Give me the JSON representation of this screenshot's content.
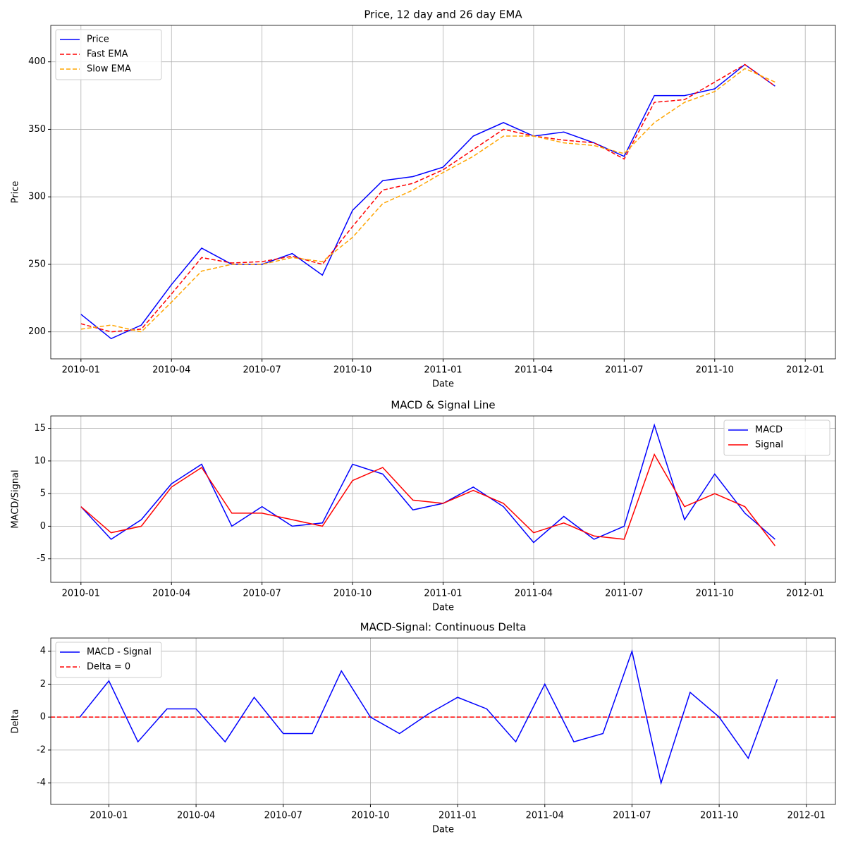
{
  "chart_data": [
    {
      "type": "line",
      "title": "Price, 12 day and 26 day EMA",
      "xlabel": "Date",
      "ylabel": "Price",
      "x": [
        "2010-01",
        "2010-02",
        "2010-03",
        "2010-04",
        "2010-05",
        "2010-06",
        "2010-07",
        "2010-08",
        "2010-09",
        "2010-10",
        "2010-11",
        "2010-12",
        "2011-01",
        "2011-02",
        "2011-03",
        "2011-04",
        "2011-05",
        "2011-06",
        "2011-07",
        "2011-08",
        "2011-09",
        "2011-10",
        "2011-11",
        "2011-12"
      ],
      "series": [
        {
          "name": "Price",
          "color": "#0000ff",
          "dash": false,
          "values": [
            213,
            195,
            205,
            235,
            262,
            250,
            250,
            258,
            242,
            290,
            312,
            315,
            322,
            345,
            355,
            345,
            348,
            340,
            330,
            375,
            375,
            380,
            398,
            382
          ]
        },
        {
          "name": "Fast EMA",
          "color": "#ff0000",
          "dash": true,
          "values": [
            206,
            200,
            202,
            228,
            255,
            251,
            252,
            256,
            250,
            278,
            305,
            310,
            320,
            335,
            350,
            345,
            342,
            340,
            328,
            370,
            372,
            385,
            398,
            382
          ]
        },
        {
          "name": "Slow EMA",
          "color": "#ffa500",
          "dash": true,
          "values": [
            202,
            205,
            200,
            222,
            245,
            250,
            250,
            255,
            252,
            270,
            295,
            305,
            318,
            330,
            345,
            345,
            340,
            338,
            332,
            355,
            370,
            378,
            395,
            385
          ]
        }
      ],
      "xlim": [
        "2009-12",
        "2012-02"
      ],
      "xticks": [
        "2010-01",
        "2010-04",
        "2010-07",
        "2010-10",
        "2011-01",
        "2011-04",
        "2011-07",
        "2011-10",
        "2012-01"
      ],
      "ylim": [
        180,
        427
      ],
      "yticks": [
        200,
        250,
        300,
        350,
        400
      ],
      "grid": true,
      "legend": "upper left"
    },
    {
      "type": "line",
      "title": "MACD & Signal Line",
      "xlabel": "Date",
      "ylabel": "MACD/Signal",
      "x": [
        "2010-01",
        "2010-02",
        "2010-03",
        "2010-04",
        "2010-05",
        "2010-06",
        "2010-07",
        "2010-08",
        "2010-09",
        "2010-10",
        "2010-11",
        "2010-12",
        "2011-01",
        "2011-02",
        "2011-03",
        "2011-04",
        "2011-05",
        "2011-06",
        "2011-07",
        "2011-08",
        "2011-09",
        "2011-10",
        "2011-11",
        "2011-12"
      ],
      "series": [
        {
          "name": "MACD",
          "color": "#0000ff",
          "dash": false,
          "values": [
            3,
            -2,
            1,
            6.5,
            9.5,
            0,
            3,
            0,
            0.5,
            9.5,
            8,
            2.5,
            3.5,
            6,
            3,
            -2.5,
            1.5,
            -2,
            0,
            15.5,
            1,
            8,
            2,
            -2
          ]
        },
        {
          "name": "Signal",
          "color": "#ff0000",
          "dash": false,
          "values": [
            3,
            -1,
            0,
            6,
            9,
            2,
            2,
            1,
            0,
            7,
            9,
            4,
            3.5,
            5.5,
            3.5,
            -1,
            0.5,
            -1.5,
            -2,
            11,
            3,
            5,
            3,
            -3
          ]
        }
      ],
      "xlim": [
        "2009-12",
        "2012-02"
      ],
      "xticks": [
        "2010-01",
        "2010-04",
        "2010-07",
        "2010-10",
        "2011-01",
        "2011-04",
        "2011-07",
        "2011-10",
        "2012-01"
      ],
      "ylim": [
        -8.6,
        16.9
      ],
      "yticks": [
        -5,
        0,
        5,
        10,
        15
      ],
      "grid": true,
      "legend": "upper right"
    },
    {
      "type": "line",
      "title": "MACD-Signal: Continuous Delta",
      "xlabel": "Date",
      "ylabel": "Delta",
      "x": [
        "2009-12",
        "2010-01",
        "2010-02",
        "2010-03",
        "2010-04",
        "2010-05",
        "2010-06",
        "2010-07",
        "2010-08",
        "2010-09",
        "2010-10",
        "2010-11",
        "2010-12",
        "2011-01",
        "2011-02",
        "2011-03",
        "2011-04",
        "2011-05",
        "2011-06",
        "2011-07",
        "2011-08",
        "2011-09",
        "2011-10",
        "2011-11",
        "2011-12"
      ],
      "series": [
        {
          "name": "MACD - Signal",
          "color": "#0000ff",
          "dash": false,
          "values": [
            0,
            2.2,
            -1.5,
            0.5,
            0.5,
            -1.5,
            1.2,
            -1,
            -1,
            2.8,
            0,
            -1,
            0.2,
            1.2,
            0.5,
            -1.5,
            2,
            -1.5,
            -1,
            4,
            -4,
            1.5,
            0,
            -2.5,
            2.3
          ]
        }
      ],
      "hline": {
        "name": "Delta = 0",
        "value": 0,
        "color": "#ff0000"
      },
      "xlim": [
        "2009-11",
        "2012-02"
      ],
      "xticks": [
        "2010-01",
        "2010-04",
        "2010-07",
        "2010-10",
        "2011-01",
        "2011-04",
        "2011-07",
        "2011-10",
        "2012-01"
      ],
      "ylim": [
        -5.3,
        4.8
      ],
      "yticks": [
        -4,
        -2,
        0,
        2,
        4
      ],
      "grid": true,
      "legend": "upper left"
    }
  ]
}
